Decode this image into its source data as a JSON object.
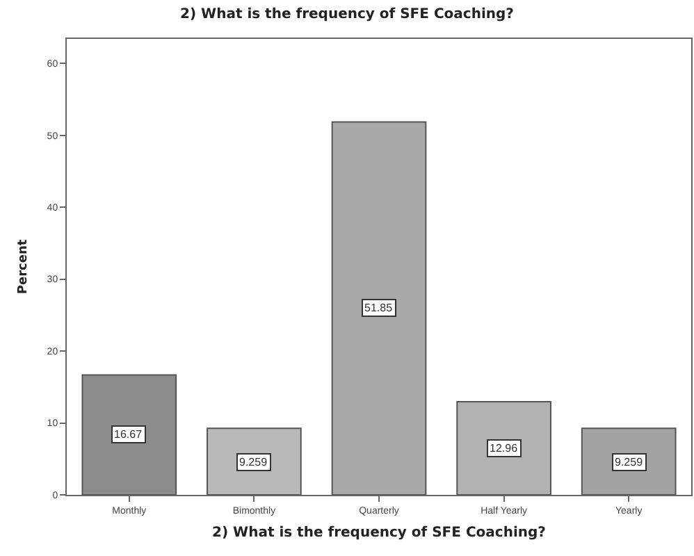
{
  "chart_data": {
    "type": "bar",
    "title": "2) What is the frequency of SFE Coaching?",
    "xlabel": "2) What is the frequency of SFE Coaching?",
    "ylabel": "Percent",
    "categories": [
      "Monthly",
      "Bimonthly",
      "Quarterly",
      "Half Yearly",
      "Yearly"
    ],
    "values": [
      16.67,
      9.259,
      51.85,
      12.96,
      9.259
    ],
    "colors": [
      "#8c8c8c",
      "#b9b9b9",
      "#a9a9a9",
      "#b2b2b2",
      "#a3a3a3"
    ],
    "ylim": [
      0,
      63.4
    ],
    "yticks": [
      0,
      10,
      20,
      30,
      40,
      50,
      60
    ],
    "data_labels": true,
    "grid": false,
    "legend": false
  }
}
